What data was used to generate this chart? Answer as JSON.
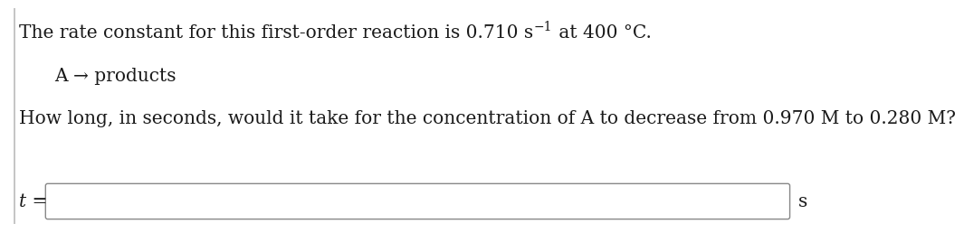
{
  "line1_part1": "The rate constant for this first-order reaction is 0.710 s",
  "line1_sup": "−1",
  "line1_part2": " at 400 °C.",
  "line2": "A → products",
  "line3": "How long, in seconds, would it take for the concentration of A to decrease from 0.970 M to 0.280 M?",
  "label_t": "t =",
  "label_s": "s",
  "bg_color": "#ffffff",
  "text_color": "#1a1a1a",
  "box_edge_color": "#888888",
  "font_size_main": 14.5,
  "font_size_sup": 10,
  "font_size_label": 14.5
}
